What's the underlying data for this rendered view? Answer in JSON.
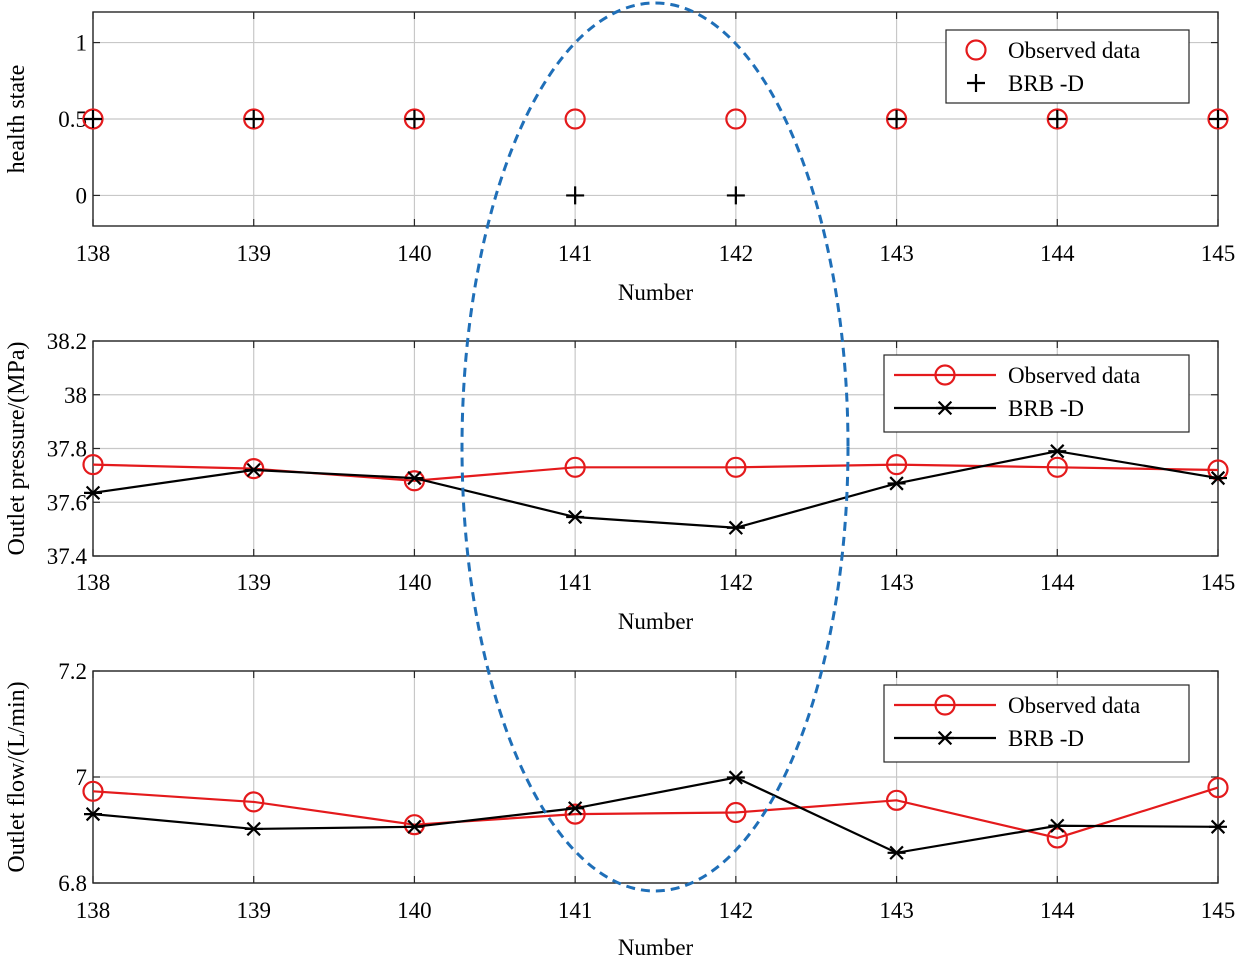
{
  "highlight_color": "#1f6fb8",
  "series_colors": {
    "observed": "#e41a1c",
    "predicted": "#000000"
  },
  "chart_data": [
    {
      "type": "scatter",
      "ylabel": "health state",
      "xlabel": "Number",
      "x": [
        138,
        139,
        140,
        141,
        142,
        143,
        144,
        145
      ],
      "xlim": [
        138,
        145
      ],
      "ylim": [
        -0.2,
        1.2
      ],
      "yticks": [
        0,
        0.5,
        1
      ],
      "ytick_labels": [
        "0",
        "0.5",
        "1"
      ],
      "xtick_labels": [
        "138",
        "139",
        "140",
        "141",
        "142",
        "143",
        "144",
        "145"
      ],
      "grid": true,
      "legend_position": "top-right",
      "series": [
        {
          "name": "Observed data",
          "marker": "circle",
          "line": false,
          "values": [
            0.5,
            0.5,
            0.5,
            0.5,
            0.5,
            0.5,
            0.5,
            0.5
          ]
        },
        {
          "name": "BRB -D",
          "marker": "plus",
          "line": false,
          "values": [
            0.5,
            0.5,
            0.5,
            0,
            0,
            0.5,
            0.5,
            0.5
          ]
        }
      ]
    },
    {
      "type": "line",
      "ylabel": "Outlet pressure/(MPa)",
      "xlabel": "Number",
      "x": [
        138,
        139,
        140,
        141,
        142,
        143,
        144,
        145
      ],
      "xlim": [
        138,
        145
      ],
      "ylim": [
        37.4,
        38.2
      ],
      "yticks": [
        37.4,
        37.6,
        37.8,
        38,
        38.2
      ],
      "ytick_labels": [
        "37.4",
        "37.6",
        "37.8",
        "38",
        "38.2"
      ],
      "xtick_labels": [
        "138",
        "139",
        "140",
        "141",
        "142",
        "143",
        "144",
        "145"
      ],
      "grid": true,
      "legend_position": "top-right",
      "series": [
        {
          "name": "Observed data",
          "marker": "circle",
          "line": true,
          "values": [
            37.74,
            37.725,
            37.68,
            37.73,
            37.73,
            37.74,
            37.73,
            37.72
          ]
        },
        {
          "name": "BRB -D",
          "marker": "asterisk",
          "line": true,
          "values": [
            37.635,
            37.72,
            37.69,
            37.545,
            37.505,
            37.67,
            37.79,
            37.69
          ]
        }
      ]
    },
    {
      "type": "line",
      "ylabel": "Outlet flow/(L/min)",
      "xlabel": "Number",
      "x": [
        138,
        139,
        140,
        141,
        142,
        143,
        144,
        145
      ],
      "xlim": [
        138,
        145
      ],
      "ylim": [
        6.8,
        7.2
      ],
      "yticks": [
        6.8,
        7,
        7.2
      ],
      "ytick_labels": [
        "6.8",
        "7",
        "7.2"
      ],
      "xtick_labels": [
        "138",
        "139",
        "140",
        "141",
        "142",
        "143",
        "144",
        "145"
      ],
      "grid": true,
      "legend_position": "top-right",
      "series": [
        {
          "name": "Observed data",
          "marker": "circle",
          "line": true,
          "values": [
            6.973,
            6.953,
            6.91,
            6.93,
            6.933,
            6.956,
            6.885,
            6.98
          ]
        },
        {
          "name": "BRB -D",
          "marker": "asterisk",
          "line": true,
          "values": [
            6.93,
            6.902,
            6.906,
            6.941,
            6.999,
            6.857,
            6.908,
            6.906
          ]
        }
      ]
    }
  ]
}
